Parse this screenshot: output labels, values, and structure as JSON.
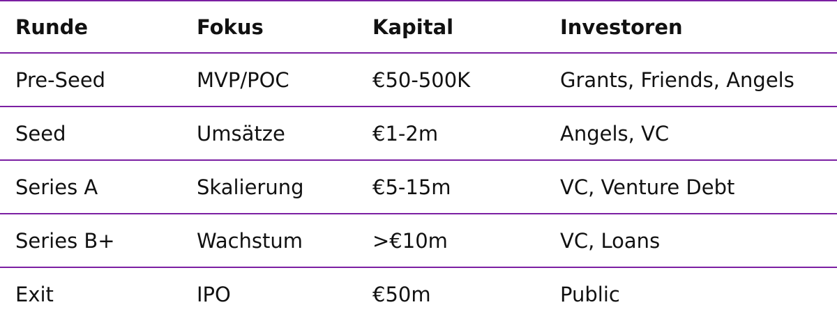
{
  "table": {
    "header": [
      "Runde",
      "Fokus",
      "Kapital",
      "Investoren"
    ],
    "rows": [
      [
        "Pre-Seed",
        "MVP/POC",
        "€50-500K",
        "Grants, Friends, Angels"
      ],
      [
        "Seed",
        "Umsätze",
        "€1-2m",
        "Angels, VC"
      ],
      [
        "Series A",
        "Skalierung",
        "€5-15m",
        "VC, Venture Debt"
      ],
      [
        "Series B+",
        "Wachstum",
        ">€10m",
        "VC, Loans"
      ],
      [
        "Exit",
        "IPO",
        "€50m",
        "Public"
      ]
    ]
  }
}
